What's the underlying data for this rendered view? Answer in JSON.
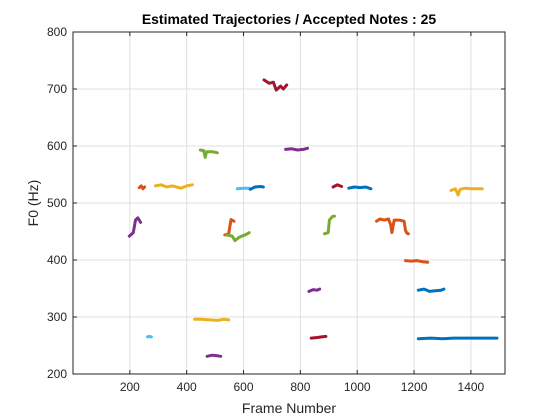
{
  "chart_data": {
    "type": "line",
    "title": "Estimated Trajectories / Accepted Notes : 25",
    "xlabel": "Frame Number",
    "ylabel": "F0 (Hz)",
    "xlim": [
      0,
      1520
    ],
    "ylim": [
      200,
      800
    ],
    "xticks": [
      200,
      400,
      600,
      800,
      1000,
      1200,
      1400
    ],
    "yticks": [
      200,
      300,
      400,
      500,
      600,
      700,
      800
    ],
    "grid": true,
    "series": [
      {
        "color": "#7E2F8E",
        "points": [
          [
            198,
            442
          ],
          [
            212,
            448
          ],
          [
            220,
            470
          ],
          [
            228,
            474
          ],
          [
            238,
            466
          ]
        ]
      },
      {
        "color": "#D95319",
        "points": [
          [
            233,
            527
          ],
          [
            240,
            530
          ],
          [
            246,
            525
          ],
          [
            252,
            528
          ]
        ]
      },
      {
        "color": "#4DBEEE",
        "points": [
          [
            262,
            265
          ],
          [
            270,
            266
          ],
          [
            276,
            265
          ]
        ]
      },
      {
        "color": "#EDB120",
        "points": [
          [
            290,
            530
          ],
          [
            310,
            532
          ],
          [
            330,
            528
          ],
          [
            350,
            530
          ],
          [
            380,
            526
          ],
          [
            400,
            530
          ],
          [
            420,
            532
          ]
        ]
      },
      {
        "color": "#EDB120",
        "points": [
          [
            428,
            296
          ],
          [
            450,
            296
          ],
          [
            480,
            295
          ],
          [
            510,
            294
          ],
          [
            530,
            296
          ],
          [
            548,
            295
          ]
        ]
      },
      {
        "color": "#7E2F8E",
        "points": [
          [
            472,
            231
          ],
          [
            490,
            233
          ],
          [
            508,
            232
          ],
          [
            520,
            231
          ]
        ]
      },
      {
        "color": "#77AC30",
        "points": [
          [
            448,
            593
          ],
          [
            460,
            592
          ],
          [
            465,
            580
          ],
          [
            470,
            590
          ],
          [
            490,
            590
          ],
          [
            508,
            588
          ]
        ]
      },
      {
        "color": "#D95319",
        "points": [
          [
            534,
            444
          ],
          [
            548,
            446
          ],
          [
            556,
            471
          ],
          [
            566,
            468
          ]
        ]
      },
      {
        "color": "#77AC30",
        "points": [
          [
            540,
            444
          ],
          [
            560,
            442
          ],
          [
            570,
            434
          ],
          [
            585,
            440
          ],
          [
            610,
            445
          ],
          [
            620,
            448
          ]
        ]
      },
      {
        "color": "#4DBEEE",
        "points": [
          [
            578,
            525
          ],
          [
            600,
            526
          ],
          [
            620,
            526
          ]
        ]
      },
      {
        "color": "#0072BD",
        "points": [
          [
            624,
            524
          ],
          [
            640,
            528
          ],
          [
            660,
            529
          ],
          [
            670,
            528
          ]
        ]
      },
      {
        "color": "#A2142F",
        "points": [
          [
            672,
            716
          ],
          [
            690,
            710
          ],
          [
            705,
            712
          ],
          [
            715,
            698
          ],
          [
            730,
            705
          ],
          [
            740,
            700
          ],
          [
            752,
            707
          ]
        ]
      },
      {
        "color": "#7E2F8E",
        "points": [
          [
            748,
            594
          ],
          [
            770,
            595
          ],
          [
            790,
            593
          ],
          [
            810,
            594
          ],
          [
            825,
            596
          ]
        ]
      },
      {
        "color": "#7E2F8E",
        "points": [
          [
            830,
            345
          ],
          [
            845,
            348
          ],
          [
            858,
            347
          ],
          [
            868,
            349
          ]
        ]
      },
      {
        "color": "#A2142F",
        "points": [
          [
            838,
            263
          ],
          [
            860,
            264
          ],
          [
            875,
            265
          ],
          [
            890,
            266
          ]
        ]
      },
      {
        "color": "#77AC30",
        "points": [
          [
            885,
            446
          ],
          [
            898,
            448
          ],
          [
            902,
            470
          ],
          [
            912,
            476
          ],
          [
            920,
            477
          ]
        ]
      },
      {
        "color": "#A2142F",
        "points": [
          [
            915,
            528
          ],
          [
            930,
            532
          ],
          [
            945,
            529
          ]
        ]
      },
      {
        "color": "#0072BD",
        "points": [
          [
            970,
            526
          ],
          [
            990,
            528
          ],
          [
            1010,
            527
          ],
          [
            1030,
            528
          ],
          [
            1048,
            525
          ]
        ]
      },
      {
        "color": "#D95319",
        "points": [
          [
            1068,
            468
          ],
          [
            1080,
            472
          ],
          [
            1095,
            470
          ],
          [
            1110,
            472
          ],
          [
            1118,
            462
          ],
          [
            1122,
            448
          ],
          [
            1130,
            470
          ],
          [
            1148,
            470
          ],
          [
            1165,
            468
          ],
          [
            1170,
            452
          ],
          [
            1175,
            447
          ],
          [
            1180,
            446
          ]
        ]
      },
      {
        "color": "#D95319",
        "points": [
          [
            1170,
            399
          ],
          [
            1190,
            398
          ],
          [
            1210,
            399
          ],
          [
            1230,
            397
          ],
          [
            1248,
            396
          ]
        ]
      },
      {
        "color": "#0072BD",
        "points": [
          [
            1215,
            347
          ],
          [
            1235,
            349
          ],
          [
            1255,
            345
          ],
          [
            1275,
            346
          ],
          [
            1295,
            347
          ],
          [
            1305,
            349
          ]
        ]
      },
      {
        "color": "#0072BD",
        "points": [
          [
            1215,
            262
          ],
          [
            1260,
            263
          ],
          [
            1300,
            262
          ],
          [
            1340,
            263
          ],
          [
            1380,
            263
          ],
          [
            1420,
            263
          ],
          [
            1460,
            263
          ],
          [
            1492,
            263
          ]
        ]
      },
      {
        "color": "#EDB120",
        "points": [
          [
            1330,
            522
          ],
          [
            1345,
            525
          ],
          [
            1355,
            514
          ],
          [
            1362,
            524
          ],
          [
            1380,
            526
          ],
          [
            1400,
            525
          ],
          [
            1440,
            525
          ]
        ]
      }
    ]
  }
}
